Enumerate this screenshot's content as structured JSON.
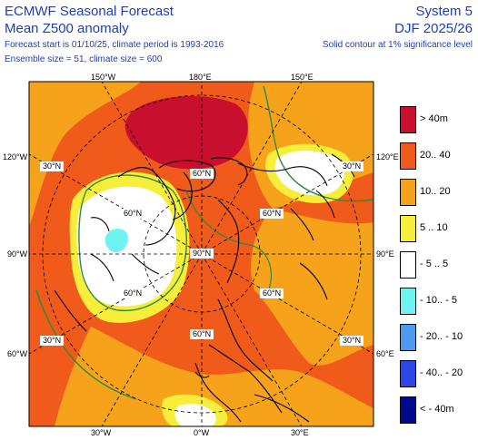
{
  "header": {
    "title": "ECMWF Seasonal Forecast",
    "subtitle": "Mean Z500 anomaly",
    "forecast_info": "Forecast start is 01/10/25, climate period is 1993-2016",
    "ensemble_info": "Ensemble size = 51, climate size = 600",
    "system": "System 5",
    "season": "DJF 2025/26",
    "significance_note": "Solid contour at 1% significance level"
  },
  "map": {
    "projection": "polar stereographic (north pole)",
    "longitude_labels": {
      "top_left": "150°W",
      "top_center": "180°E",
      "top_right": "150°E",
      "left_upper": "120°W",
      "right_upper": "120°E",
      "left_mid": "90°W",
      "right_mid": "90°E",
      "left_lower": "60°W",
      "right_lower": "60°E",
      "bottom_left": "30°W",
      "bottom_center": "0°W",
      "bottom_right": "30°E"
    },
    "latitude_labels": {
      "lat30_nw": "30°N",
      "lat30_ne": "30°N",
      "lat30_sw": "30°N",
      "lat30_se": "30°N",
      "lat60_n": "60°N",
      "lat60_w": "60°N",
      "lat60_e": "60°N",
      "lat60_sw": "60°N",
      "lat60_se": "60°N",
      "lat60_s": "60°N",
      "pole": "90°N"
    },
    "colors": {
      "gt40": "#c8102e",
      "p20_40": "#f05a1a",
      "p10_20": "#f7a21b",
      "p5_10": "#f7ee3a",
      "neutral": "#ffffff",
      "n10_5": "#6ef2f2",
      "n20_10": "#4d9af0",
      "n40_20": "#2d46e6",
      "lt40": "#000a8c",
      "significance_contour": "#2e8b3a",
      "coastline": "#000000",
      "grid": "#000000"
    }
  },
  "legend": {
    "items": [
      {
        "label": "> 40m",
        "color": "#c8102e"
      },
      {
        "label": "20.. 40",
        "color": "#f05a1a"
      },
      {
        "label": "10.. 20",
        "color": "#f7a21b"
      },
      {
        "label": "5 .. 10",
        "color": "#f7ee3a"
      },
      {
        "label": "- 5 .. 5",
        "color": "#ffffff"
      },
      {
        "label": "- 10.. - 5",
        "color": "#6ef2f2"
      },
      {
        "label": "- 20.. - 10",
        "color": "#4d9af0"
      },
      {
        "label": "- 40.. - 20",
        "color": "#2d46e6"
      },
      {
        "label": "< - 40m",
        "color": "#000a8c"
      }
    ]
  }
}
